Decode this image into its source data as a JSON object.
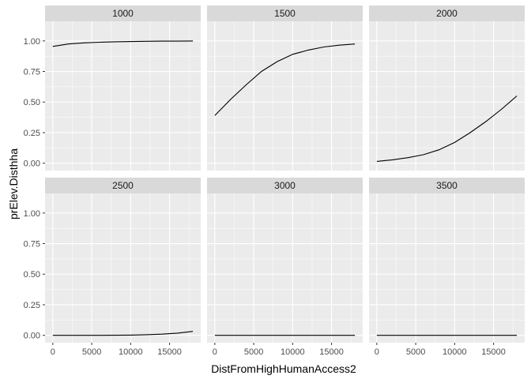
{
  "chart_data": {
    "type": "line",
    "facet_variable_values": [
      "1000",
      "1500",
      "2000",
      "2500",
      "3000",
      "3500"
    ],
    "xlabel": "DistFromHighHumanAccess2",
    "ylabel": "prElev.Disthha",
    "xlim": [
      -1000,
      19000
    ],
    "ylim": [
      -0.06,
      1.16
    ],
    "x_ticks": [
      0,
      5000,
      10000,
      15000
    ],
    "x_tick_labels": [
      "0",
      "5000",
      "10000",
      "15000"
    ],
    "y_ticks": [
      0,
      0.25,
      0.5,
      0.75,
      1
    ],
    "y_tick_labels": [
      "0.00",
      "0.25",
      "0.50",
      "0.75",
      "1.00"
    ],
    "grid": true,
    "colors": {
      "panel_bg": "#ebebeb",
      "strip_bg": "#d9d9d9",
      "grid": "#ffffff",
      "line": "#000000"
    },
    "x": [
      0,
      2000,
      4000,
      6000,
      8000,
      10000,
      12000,
      14000,
      16000,
      18000
    ],
    "facets": [
      {
        "label": "1000",
        "values": [
          0.955,
          0.975,
          0.984,
          0.989,
          0.993,
          0.995,
          0.997,
          0.998,
          0.998,
          0.999
        ]
      },
      {
        "label": "1500",
        "values": [
          0.39,
          0.52,
          0.64,
          0.75,
          0.83,
          0.89,
          0.925,
          0.95,
          0.965,
          0.975
        ]
      },
      {
        "label": "2000",
        "values": [
          0.015,
          0.028,
          0.045,
          0.07,
          0.11,
          0.17,
          0.25,
          0.34,
          0.44,
          0.55
        ]
      },
      {
        "label": "2500",
        "values": [
          0.0,
          0.0,
          0.0,
          0.0,
          0.001,
          0.002,
          0.005,
          0.01,
          0.018,
          0.032
        ]
      },
      {
        "label": "3000",
        "values": [
          0.0,
          0.0,
          0.0,
          0.0,
          0.0,
          0.0,
          0.0,
          0.0,
          0.0,
          0.0
        ]
      },
      {
        "label": "3500",
        "values": [
          0.0,
          0.0,
          0.0,
          0.0,
          0.0,
          0.0,
          0.0,
          0.0,
          0.0,
          0.0
        ]
      }
    ]
  }
}
